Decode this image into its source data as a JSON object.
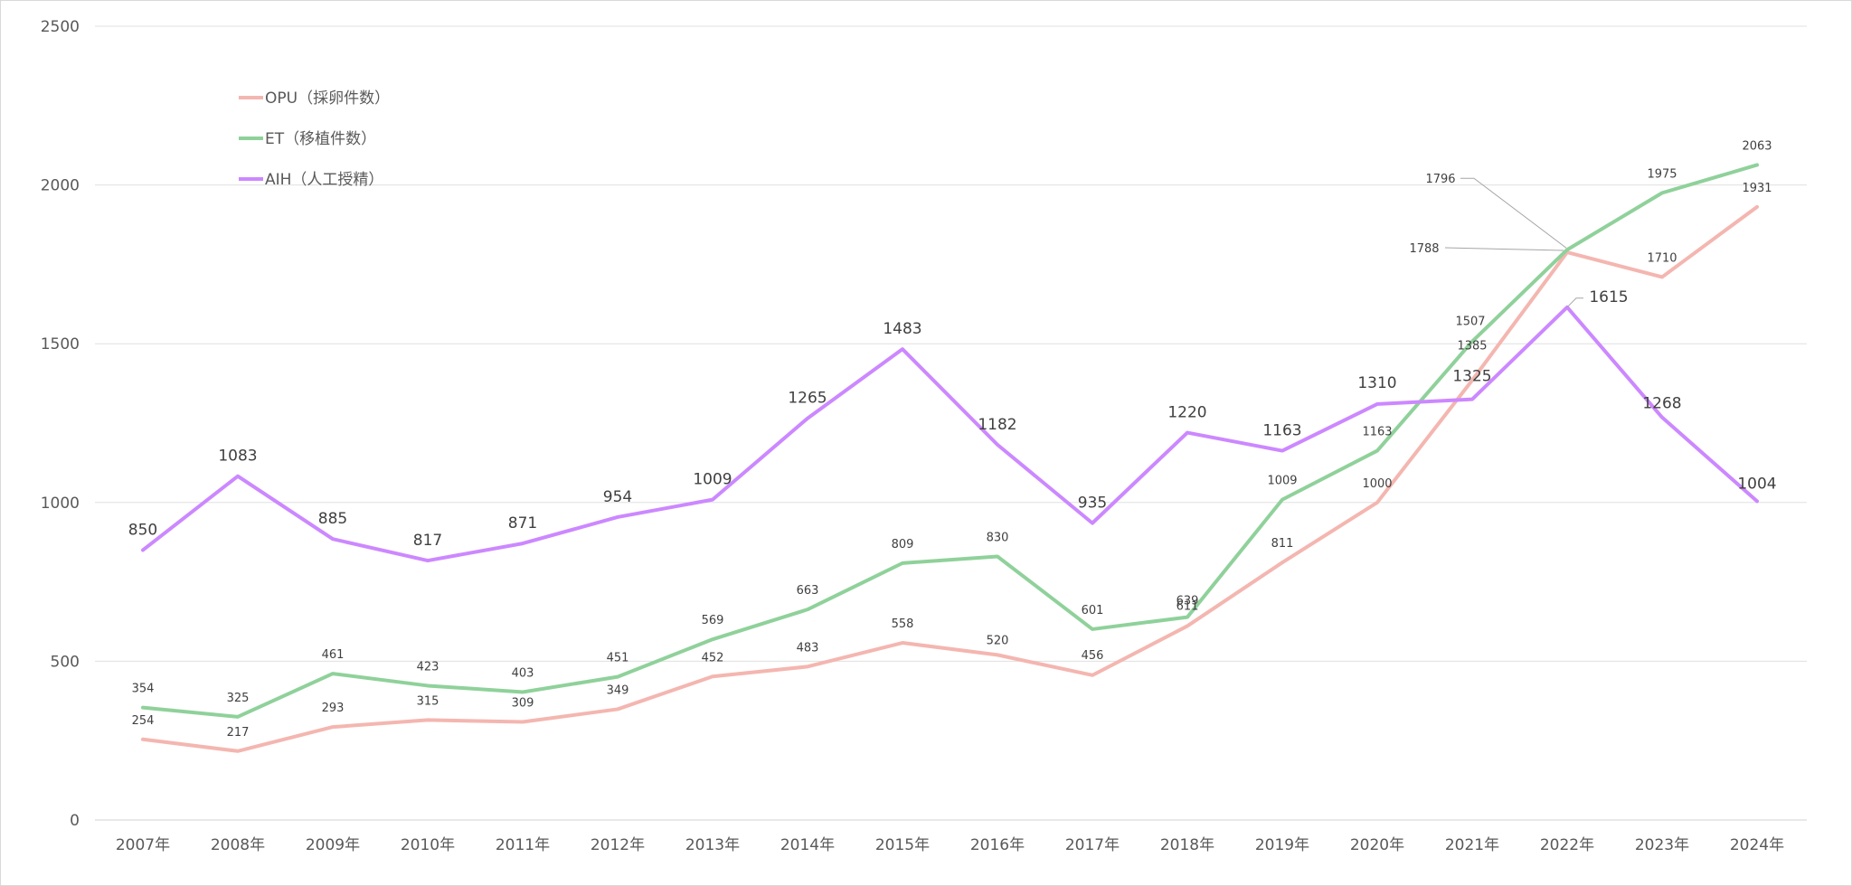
{
  "chart_data": {
    "type": "line",
    "title": "",
    "xlabel": "",
    "ylabel": "",
    "ylim": [
      0,
      2500
    ],
    "yticks": [
      0,
      500,
      1000,
      1500,
      2000,
      2500
    ],
    "grid": true,
    "legend_position": "top-left",
    "categories": [
      "2007年",
      "2008年",
      "2009年",
      "2010年",
      "2011年",
      "2012年",
      "2013年",
      "2014年",
      "2015年",
      "2016年",
      "2017年",
      "2018年",
      "2019年",
      "2020年",
      "2021年",
      "2022年",
      "2023年",
      "2024年"
    ],
    "series": [
      {
        "key": "opu",
        "name": "OPU（採卵件数）",
        "color": "#f4b6b0",
        "label_size": "small",
        "values": [
          254,
          217,
          293,
          315,
          309,
          349,
          452,
          483,
          558,
          520,
          456,
          611,
          811,
          1000,
          1385,
          1788,
          1710,
          1931
        ]
      },
      {
        "key": "et",
        "name": "ET（移植件数）",
        "color": "#8fd19a",
        "label_size": "small",
        "values": [
          354,
          325,
          461,
          423,
          403,
          451,
          569,
          663,
          809,
          830,
          601,
          639,
          1009,
          1163,
          1507,
          1796,
          1975,
          2063
        ]
      },
      {
        "key": "aih",
        "name": "AIH（人工授精）",
        "color": "#cc88ff",
        "label_size": "big",
        "values": [
          850,
          1083,
          885,
          817,
          871,
          954,
          1009,
          1265,
          1483,
          1182,
          935,
          1220,
          1163,
          1310,
          1325,
          1615,
          1268,
          1004
        ]
      }
    ]
  }
}
